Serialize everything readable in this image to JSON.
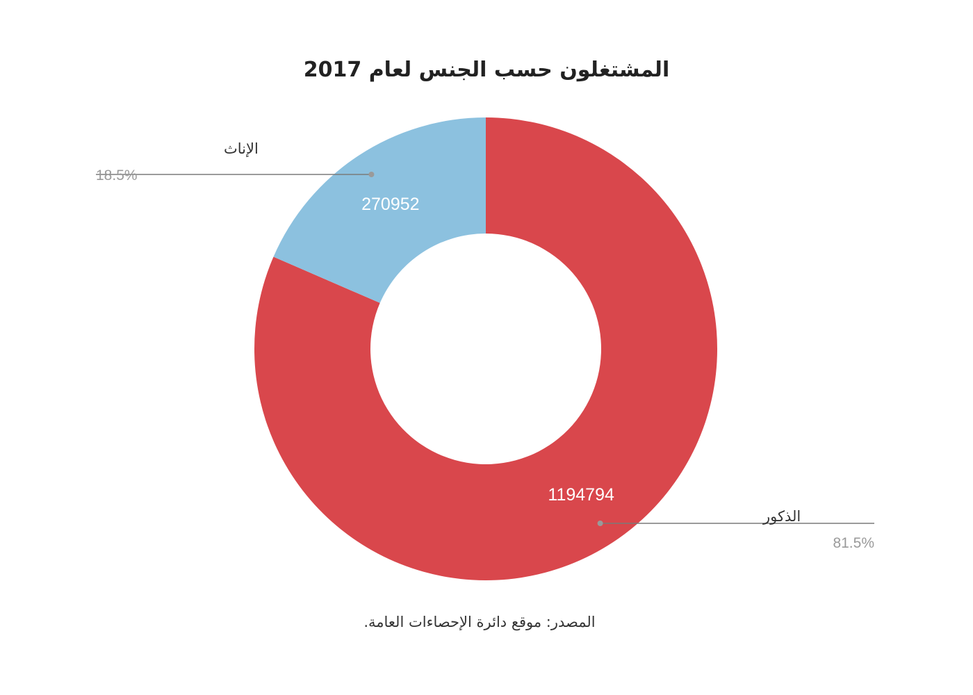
{
  "chart_data": {
    "type": "pie",
    "donut": true,
    "title": "المشتغلون حسب الجنس لعام 2017",
    "slices": [
      {
        "label": "الذكور",
        "value": 1194794,
        "percent_label": "81.5%",
        "color": "#d9474c"
      },
      {
        "label": "الإناث",
        "value": 270952,
        "percent_label": "18.5%",
        "color": "#8cc1df"
      }
    ],
    "source": "المصدر: موقع دائرة الإحصاءات العامة.",
    "legend": "outside-with-leader-lines"
  }
}
